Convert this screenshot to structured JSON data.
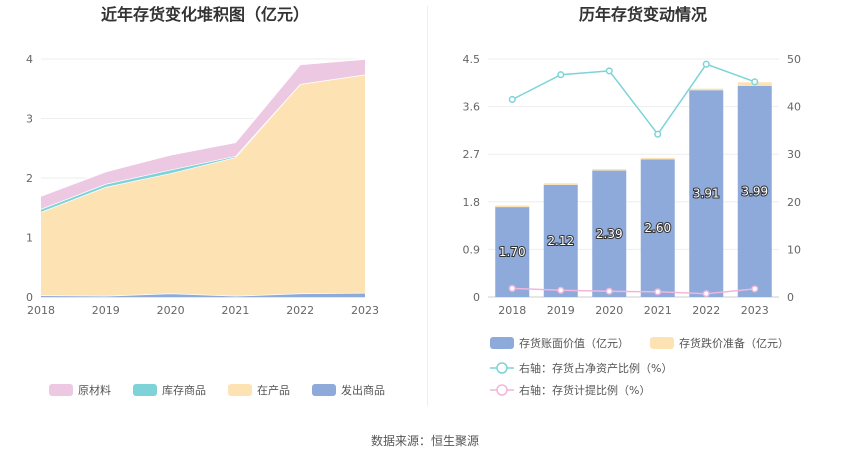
{
  "source": {
    "text": "数据来源：恒生聚源"
  },
  "chart_data": [
    {
      "type": "area",
      "title": "近年存货变化堆积图（亿元）",
      "x": [
        "2018",
        "2019",
        "2020",
        "2021",
        "2022",
        "2023"
      ],
      "ylim": [
        0,
        4
      ],
      "yticks": [
        "0",
        "1",
        "2",
        "3",
        "4"
      ],
      "series": [
        {
          "name": "发出商品",
          "color": "#8eaadb",
          "values": [
            0.03,
            0.02,
            0.06,
            0.02,
            0.06,
            0.07
          ]
        },
        {
          "name": "在产品",
          "color": "#fde2b4",
          "values": [
            1.4,
            1.83,
            2.02,
            2.33,
            3.52,
            3.67
          ]
        },
        {
          "name": "库存商品",
          "color": "#7dd3d8",
          "values": [
            0.05,
            0.05,
            0.06,
            0.02,
            0.0,
            0.0
          ]
        },
        {
          "name": "原材料",
          "color": "#ecc8e3",
          "values": [
            0.22,
            0.21,
            0.25,
            0.23,
            0.33,
            0.26
          ]
        }
      ],
      "legend": {
        "position": "bottom",
        "order": [
          "原材料",
          "库存商品",
          "在产品",
          "发出商品"
        ]
      },
      "grid": true
    },
    {
      "type": "bar",
      "title": "历年存货变动情况",
      "x": [
        "2018",
        "2019",
        "2020",
        "2021",
        "2022",
        "2023"
      ],
      "ylim": [
        0,
        4.5
      ],
      "yticks": [
        "0",
        "0.9",
        "1.8",
        "2.7",
        "3.6",
        "4.5"
      ],
      "y2lim": [
        0,
        50
      ],
      "y2ticks": [
        "0",
        "10",
        "20",
        "30",
        "40",
        "50"
      ],
      "bars": [
        {
          "name": "存货账面价值（亿元）",
          "color": "#8eaadb",
          "values": [
            1.7,
            2.12,
            2.39,
            2.6,
            3.91,
            3.99
          ],
          "labels": [
            "1.70",
            "2.12",
            "2.39",
            "2.60",
            "3.91",
            "3.99"
          ]
        },
        {
          "name": "存货跌价准备（亿元）",
          "color": "#fde2b4",
          "values": [
            0.03,
            0.03,
            0.03,
            0.03,
            0.03,
            0.07
          ]
        }
      ],
      "lines": [
        {
          "name": "右轴：存货占净资产比例（%）",
          "color": "#7dd3d8",
          "values": [
            41.5,
            46.7,
            47.5,
            34.2,
            48.9,
            45.2
          ]
        },
        {
          "name": "右轴：存货计提比例（%）",
          "color": "#f0b6dc",
          "values": [
            1.8,
            1.4,
            1.2,
            1.1,
            0.7,
            1.7
          ]
        }
      ],
      "legend": {
        "position": "bottom"
      },
      "grid": true
    }
  ]
}
